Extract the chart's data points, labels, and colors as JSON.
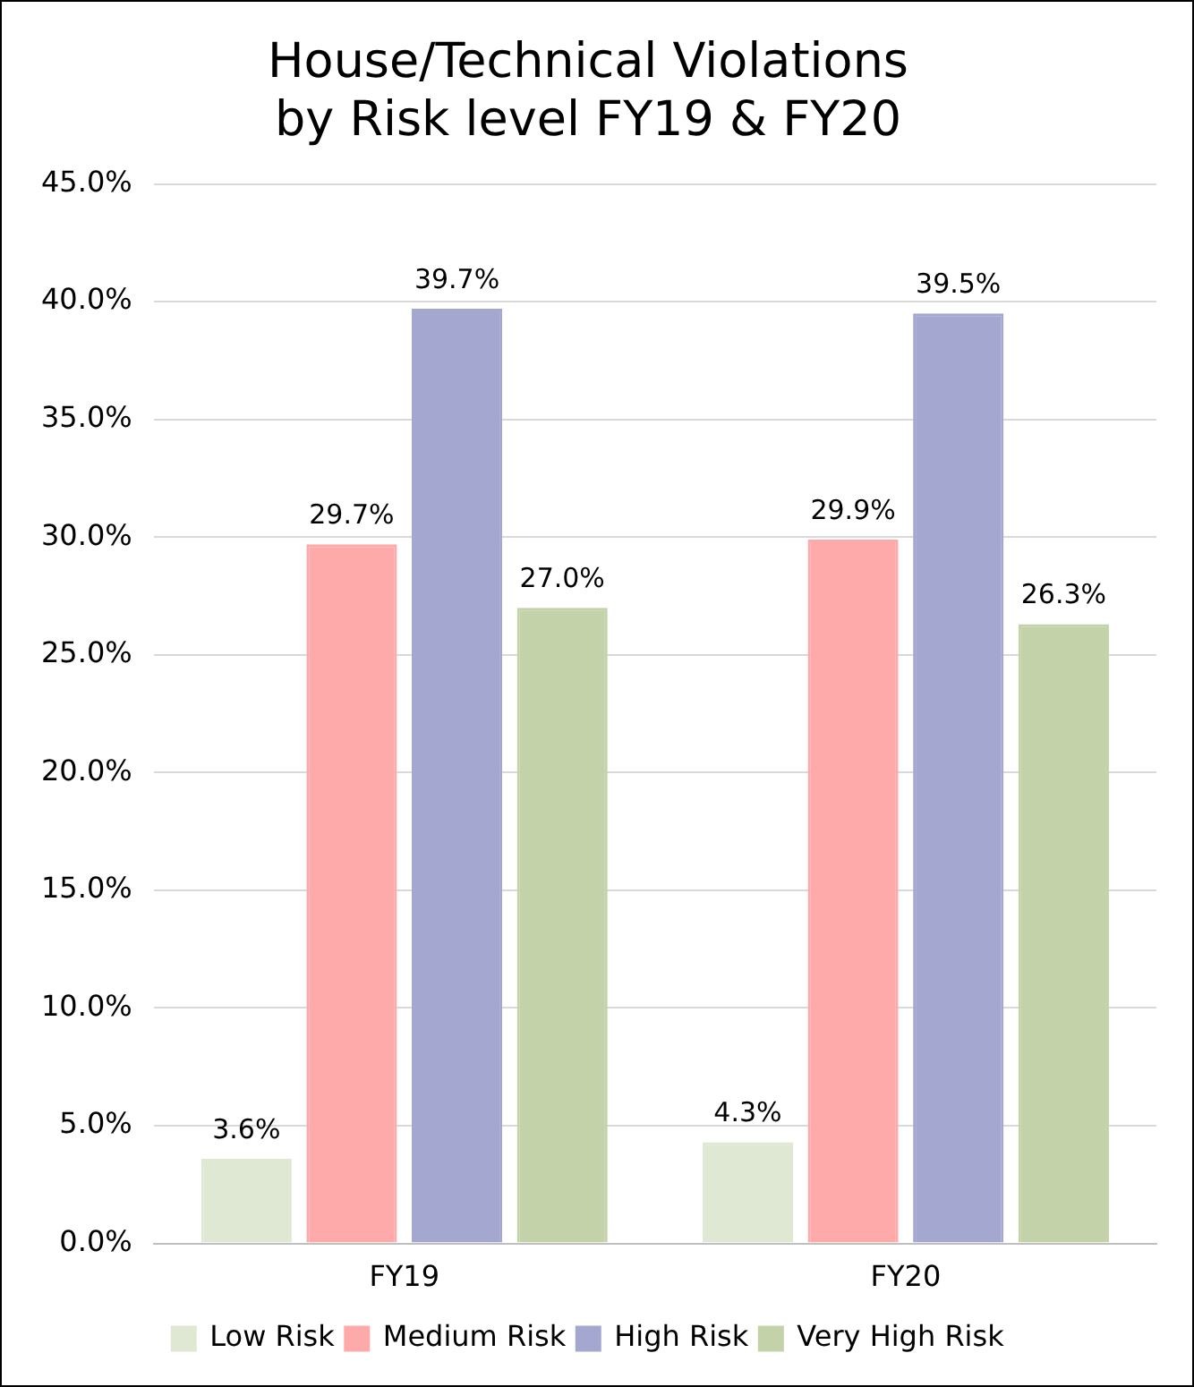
{
  "chart_data": {
    "type": "bar",
    "title": "House/Technical Violations\nby Risk level FY19 & FY20",
    "categories": [
      "FY19",
      "FY20"
    ],
    "series": [
      {
        "name": "Low Risk",
        "color": "#dfe8d2",
        "values": [
          3.6,
          4.3
        ],
        "value_labels": [
          "3.6%",
          "4.3%"
        ]
      },
      {
        "name": "Medium Risk",
        "color": "#ffaaaa",
        "values": [
          29.7,
          29.9
        ],
        "value_labels": [
          "29.7%",
          "29.9%"
        ]
      },
      {
        "name": "High Risk",
        "color": "#a4a7cf",
        "values": [
          39.7,
          39.5
        ],
        "value_labels": [
          "39.7%",
          "39.5%"
        ]
      },
      {
        "name": "Very High Risk",
        "color": "#c4d2aa",
        "values": [
          27.0,
          26.3
        ],
        "value_labels": [
          "27.0%",
          "26.3%"
        ]
      }
    ],
    "ylim": [
      0,
      45
    ],
    "yticks": [
      {
        "value": 0,
        "label": "0.0%"
      },
      {
        "value": 5,
        "label": "5.0%"
      },
      {
        "value": 10,
        "label": "10.0%"
      },
      {
        "value": 15,
        "label": "15.0%"
      },
      {
        "value": 20,
        "label": "20.0%"
      },
      {
        "value": 25,
        "label": "25.0%"
      },
      {
        "value": 30,
        "label": "30.0%"
      },
      {
        "value": 35,
        "label": "35.0%"
      },
      {
        "value": 40,
        "label": "40.0%"
      },
      {
        "value": 45,
        "label": "45.0%"
      }
    ],
    "grid": "y",
    "legend": "bottom"
  }
}
